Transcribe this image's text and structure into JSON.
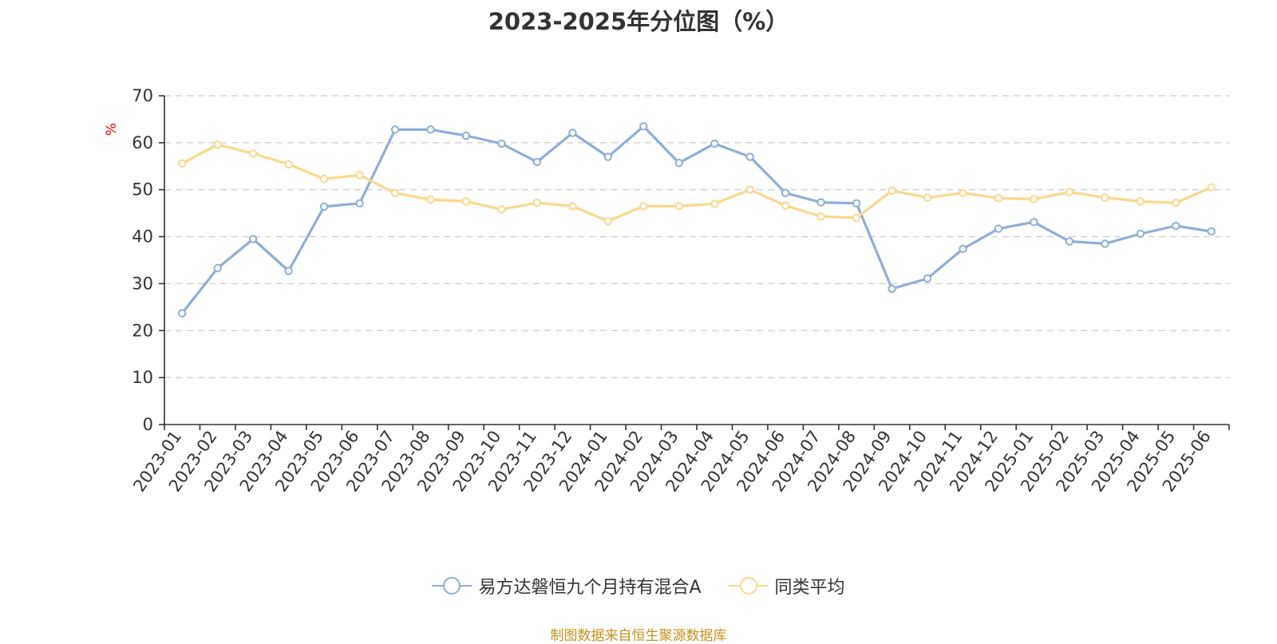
{
  "chart_data": {
    "type": "line",
    "title": "2023-2025年分位图（%）",
    "ylabel": "%",
    "ylim": [
      0,
      70
    ],
    "yticks": [
      0,
      10,
      20,
      30,
      40,
      50,
      60,
      70
    ],
    "grid": true,
    "legend_position": "bottom",
    "categories": [
      "2023-01",
      "2023-02",
      "2023-03",
      "2023-04",
      "2023-05",
      "2023-06",
      "2023-07",
      "2023-08",
      "2023-09",
      "2023-10",
      "2023-11",
      "2023-12",
      "2024-01",
      "2024-02",
      "2024-03",
      "2024-04",
      "2024-05",
      "2024-06",
      "2024-07",
      "2024-08",
      "2024-09",
      "2024-10",
      "2024-11",
      "2024-12",
      "2025-01",
      "2025-02",
      "2025-03",
      "2025-04",
      "2025-05",
      "2025-06"
    ],
    "series": [
      {
        "name": "易方达磐恒九个月持有混合A",
        "color": "#8eaed8",
        "values": [
          23.7,
          33.3,
          39.5,
          32.7,
          46.4,
          47.1,
          62.8,
          62.8,
          61.5,
          59.8,
          55.9,
          62.1,
          57.0,
          63.5,
          55.7,
          59.8,
          57.0,
          49.3,
          47.3,
          47.1,
          28.9,
          31.1,
          37.4,
          41.7,
          43.1,
          39.0,
          38.5,
          40.6,
          42.3,
          41.1
        ]
      },
      {
        "name": "同类平均",
        "color": "#fbd88e",
        "values": [
          55.6,
          59.6,
          57.7,
          55.4,
          52.3,
          53.1,
          49.3,
          47.9,
          47.5,
          45.8,
          47.2,
          46.5,
          43.3,
          46.5,
          46.5,
          47.0,
          50.0,
          46.6,
          44.3,
          44.0,
          49.8,
          48.3,
          49.3,
          48.2,
          48.0,
          49.5,
          48.3,
          47.5,
          47.2,
          50.5
        ]
      }
    ]
  },
  "footer": {
    "source": "制图数据来自恒生聚源数据库"
  }
}
